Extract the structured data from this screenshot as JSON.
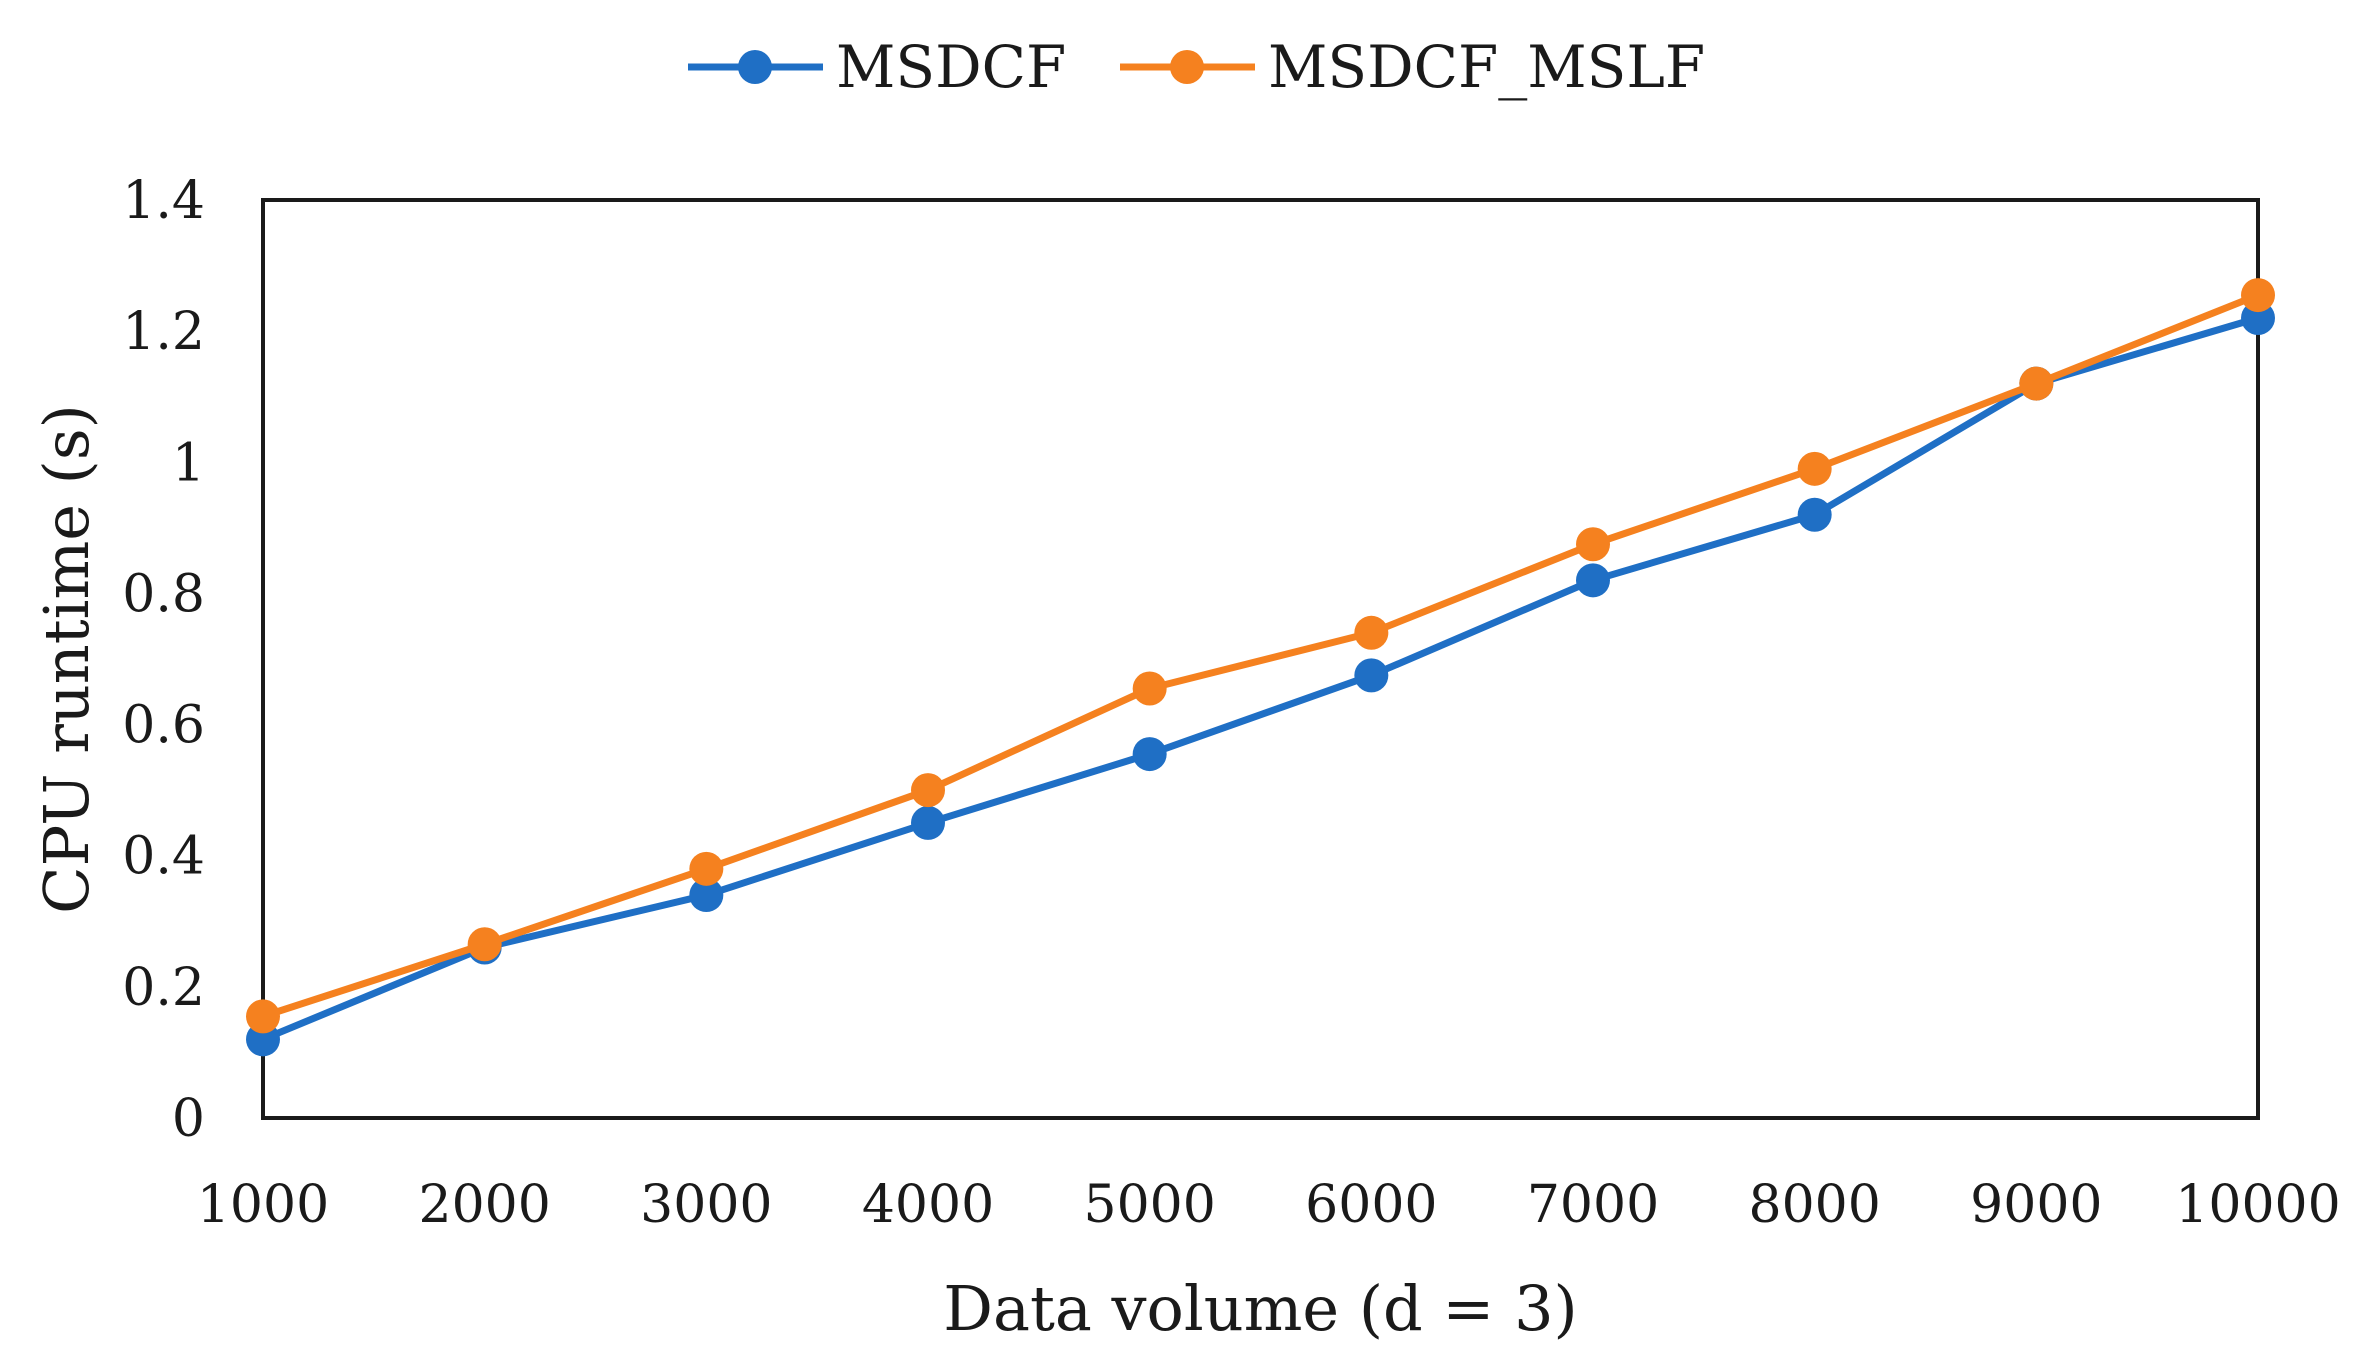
{
  "chart_data": {
    "type": "line",
    "xlabel": "Data volume (d = 3)",
    "ylabel": "CPU runtime (s)",
    "x": [
      1000,
      2000,
      3000,
      4000,
      5000,
      6000,
      7000,
      8000,
      9000,
      10000
    ],
    "x_tick_labels": [
      "1000",
      "2000",
      "3000",
      "4000",
      "5000",
      "6000",
      "7000",
      "8000",
      "9000",
      "10000"
    ],
    "ylim": [
      0,
      1.4
    ],
    "y_ticks": [
      0,
      0.2,
      0.4,
      0.6,
      0.8,
      1.0,
      1.2,
      1.4
    ],
    "y_tick_labels": [
      "0",
      "0.2",
      "0.4",
      "0.6",
      "0.8",
      "1",
      "1.2",
      "1.4"
    ],
    "grid": false,
    "legend_position": "top-center",
    "series": [
      {
        "name": "MSDCF",
        "color": "#1F6FC5",
        "values": [
          0.12,
          0.26,
          0.34,
          0.45,
          0.555,
          0.675,
          0.82,
          0.92,
          1.12,
          1.22
        ]
      },
      {
        "name": "MSDCF_MSLF",
        "color": "#F5811F",
        "values": [
          0.155,
          0.265,
          0.38,
          0.5,
          0.655,
          0.74,
          0.875,
          0.99,
          1.12,
          1.255
        ]
      }
    ]
  }
}
